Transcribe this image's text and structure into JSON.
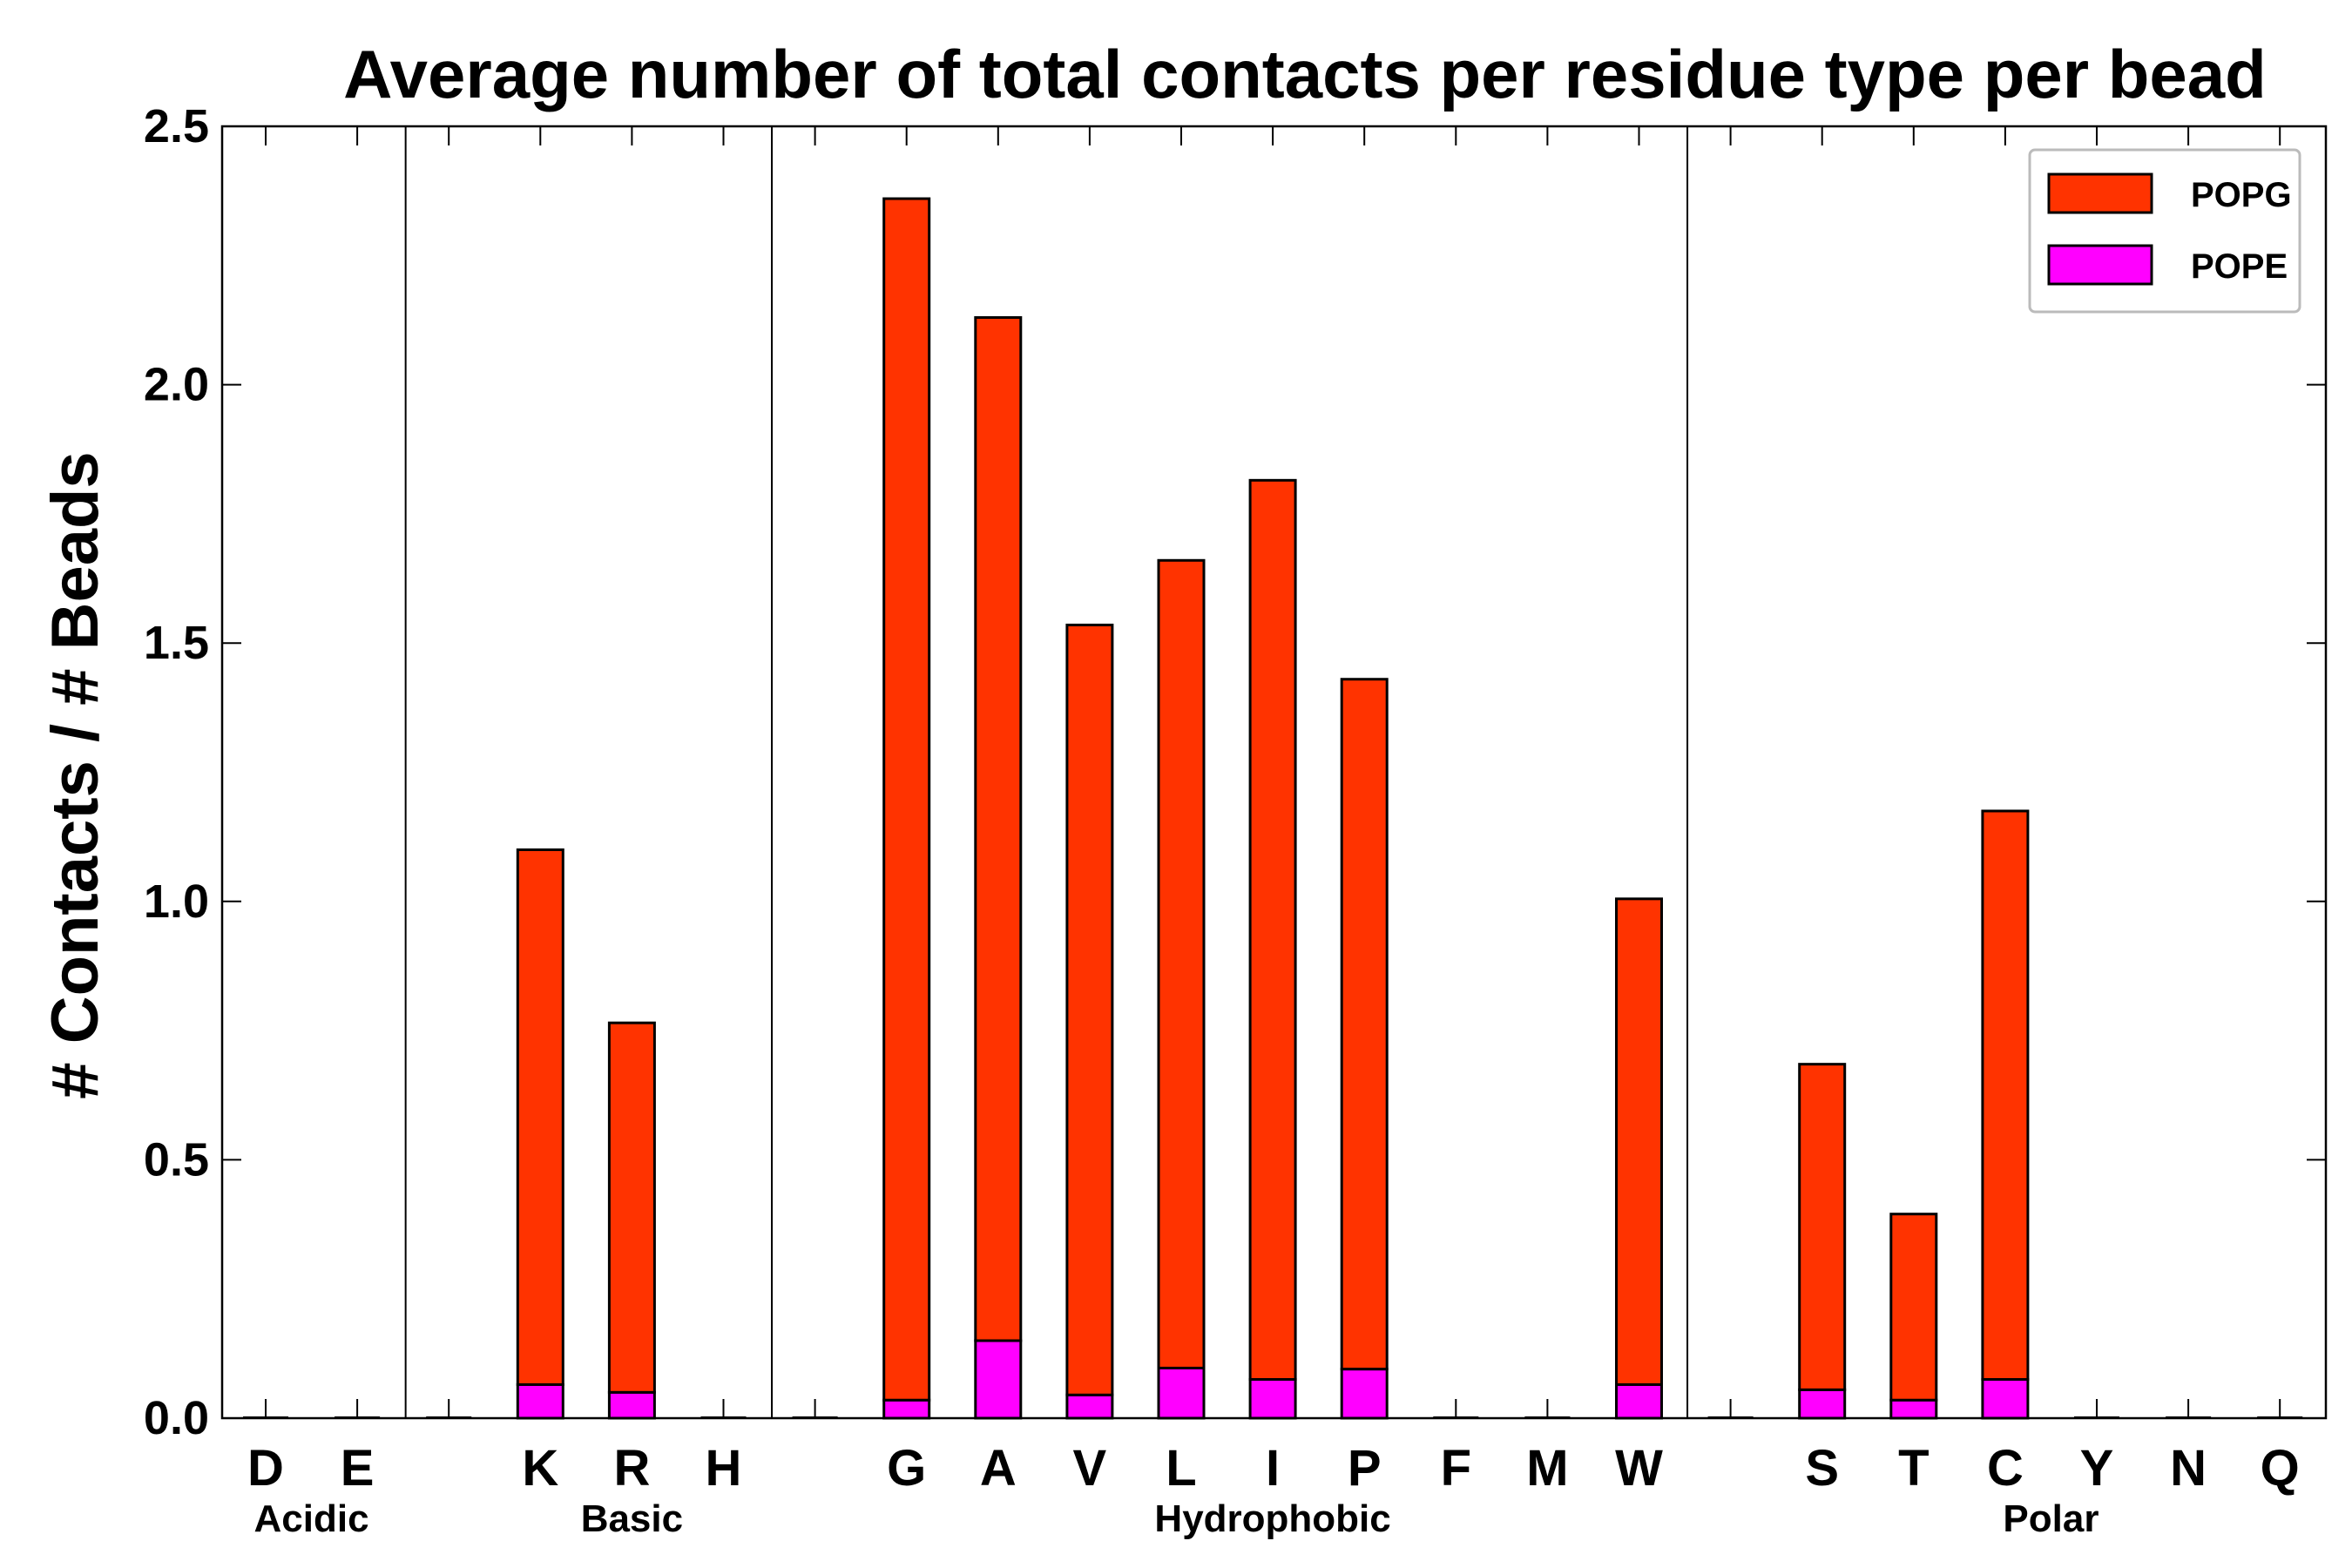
{
  "chart_data": {
    "type": "bar",
    "stacked": true,
    "title": "Average number of total contacts per residue type per bead",
    "xlabel": "",
    "ylabel": "# Contacts / # Beads",
    "ylim": [
      0,
      2.5
    ],
    "yticks": [
      0.0,
      0.5,
      1.0,
      1.5,
      2.0,
      2.5
    ],
    "ytick_labels": [
      "0.0",
      "0.5",
      "1.0",
      "1.5",
      "2.0",
      "2.5"
    ],
    "categories": [
      "D",
      "E",
      "",
      "K",
      "R",
      "H",
      "",
      "G",
      "A",
      "V",
      "L",
      "I",
      "P",
      "F",
      "M",
      "W",
      "",
      "S",
      "T",
      "C",
      "Y",
      "N",
      "Q"
    ],
    "series": [
      {
        "name": "POPE",
        "color": "#ff00ff",
        "values": [
          0,
          0,
          0,
          0.065,
          0.05,
          0,
          0,
          0.035,
          0.15,
          0.045,
          0.097,
          0.075,
          0.095,
          0,
          0,
          0.065,
          0,
          0.055,
          0.035,
          0.075,
          0,
          0,
          0
        ]
      },
      {
        "name": "POPG",
        "color": "#ff3300",
        "values": [
          0,
          0,
          0,
          1.035,
          0.715,
          0,
          0,
          2.325,
          1.98,
          1.49,
          1.563,
          1.74,
          1.335,
          0,
          0,
          0.94,
          0,
          0.63,
          0.36,
          1.1,
          0,
          0,
          0
        ]
      }
    ],
    "groups": [
      {
        "label": "Acidic",
        "start": 0,
        "end": 1
      },
      {
        "label": "Basic",
        "start": 3,
        "end": 5
      },
      {
        "label": "Hydrophobic",
        "start": 7,
        "end": 15
      },
      {
        "label": "Polar",
        "start": 17,
        "end": 22
      }
    ],
    "separators_after": [
      1,
      5,
      15
    ],
    "legend": {
      "position": "top-right",
      "entries": [
        {
          "label": "POPG",
          "color": "#ff3300"
        },
        {
          "label": "POPE",
          "color": "#ff00ff"
        }
      ]
    },
    "grid": false
  }
}
